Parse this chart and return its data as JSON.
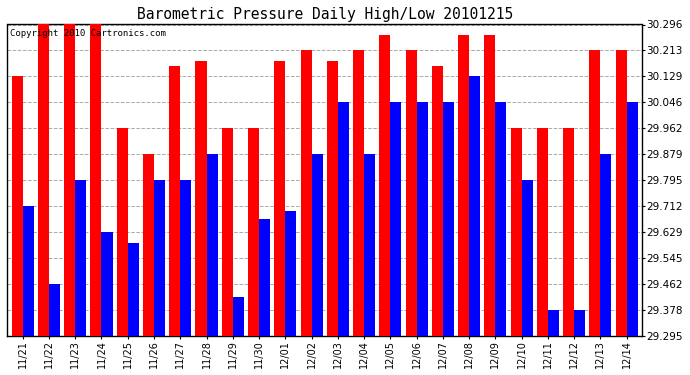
{
  "title": "Barometric Pressure Daily High/Low 20101215",
  "copyright": "Copyright 2010 Cartronics.com",
  "categories": [
    "11/21",
    "11/22",
    "11/23",
    "11/24",
    "11/25",
    "11/26",
    "11/27",
    "11/28",
    "11/29",
    "11/30",
    "12/01",
    "12/02",
    "12/03",
    "12/04",
    "12/05",
    "12/06",
    "12/07",
    "12/08",
    "12/09",
    "12/10",
    "12/11",
    "12/12",
    "12/13",
    "12/14"
  ],
  "highs": [
    30.129,
    30.296,
    30.296,
    30.296,
    29.962,
    29.879,
    30.162,
    30.178,
    29.962,
    29.962,
    30.178,
    30.213,
    30.178,
    30.213,
    30.262,
    30.213,
    30.162,
    30.262,
    30.262,
    29.962,
    29.962,
    29.962,
    30.213,
    30.213
  ],
  "lows": [
    29.712,
    29.462,
    29.795,
    29.629,
    29.595,
    29.795,
    29.795,
    29.879,
    29.42,
    29.67,
    29.695,
    29.879,
    30.046,
    29.879,
    30.046,
    30.046,
    30.046,
    30.129,
    30.046,
    29.795,
    29.378,
    29.378,
    29.879,
    30.046
  ],
  "high_color": "#FF0000",
  "low_color": "#0000FF",
  "bg_color": "#FFFFFF",
  "grid_color": "#AAAAAA",
  "ymin": 29.295,
  "ymax": 30.296,
  "yticks": [
    29.295,
    29.378,
    29.462,
    29.545,
    29.629,
    29.712,
    29.795,
    29.879,
    29.962,
    30.046,
    30.129,
    30.213,
    30.296
  ]
}
